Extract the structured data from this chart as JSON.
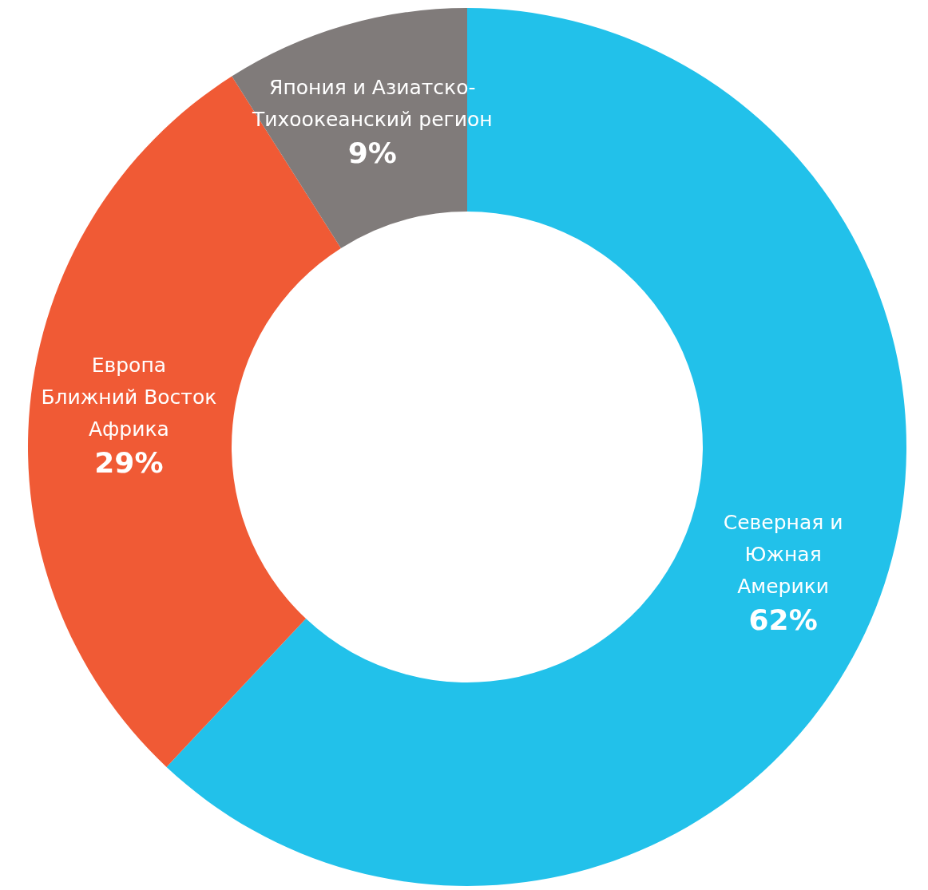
{
  "chart_data": {
    "type": "donut",
    "categories": [
      "Северная и\nЮжная\nАмерики",
      "Европа\nБлижний Восток\nАфрика",
      "Япония и Азиатско-\nТихоокеанский регион"
    ],
    "values": [
      62,
      29,
      9
    ],
    "value_labels": [
      "62%",
      "29%",
      "9%"
    ],
    "colors": [
      "#22c1ea",
      "#f05a35",
      "#807b7a"
    ],
    "legend": false
  }
}
